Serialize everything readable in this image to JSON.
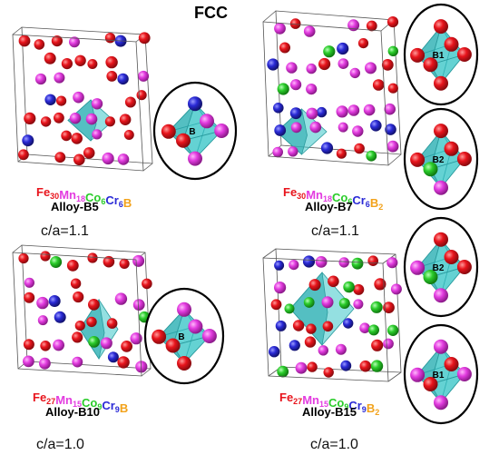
{
  "title": "FCC",
  "colors": {
    "Fe": "#e8141c",
    "Mn": "#e33ce0",
    "Co": "#2bcc2b",
    "Cr": "#2a2ad6",
    "B": "#f2a21a",
    "polyhedron": "#3cc6c9"
  },
  "panels": [
    {
      "formula": [
        {
          "el": "Fe",
          "sub": "30"
        },
        {
          "el": "Mn",
          "sub": "18"
        },
        {
          "el": "Co",
          "sub": "6"
        },
        {
          "el": "Cr",
          "sub": "6"
        },
        {
          "el": "B",
          "sub": ""
        }
      ],
      "alloy": "Alloy-B5",
      "ca": "c/a=1.1"
    },
    {
      "formula": [
        {
          "el": "Fe",
          "sub": "30"
        },
        {
          "el": "Mn",
          "sub": "18"
        },
        {
          "el": "Co",
          "sub": "6"
        },
        {
          "el": "Cr",
          "sub": "6"
        },
        {
          "el": "B",
          "sub": "2"
        }
      ],
      "alloy": "Alloy-B7",
      "ca": "c/a=1.1"
    },
    {
      "formula": [
        {
          "el": "Fe",
          "sub": "27"
        },
        {
          "el": "Mn",
          "sub": "15"
        },
        {
          "el": "Co",
          "sub": "9"
        },
        {
          "el": "Cr",
          "sub": "9"
        },
        {
          "el": "B",
          "sub": ""
        }
      ],
      "alloy": "Alloy-B10",
      "ca": "c/a=1.0"
    },
    {
      "formula": [
        {
          "el": "Fe",
          "sub": "27"
        },
        {
          "el": "Mn",
          "sub": "15"
        },
        {
          "el": "Co",
          "sub": "9"
        },
        {
          "el": "Cr",
          "sub": "9"
        },
        {
          "el": "B",
          "sub": "2"
        }
      ],
      "alloy": "Alloy-B15",
      "ca": "c/a=1.0"
    }
  ],
  "insets": [
    {
      "label": "B",
      "neighbors": [
        "Cr",
        "Fe",
        "Fe",
        "Mn",
        "Mn",
        "Mn"
      ]
    },
    {
      "label": "B1",
      "neighbors": [
        "Fe",
        "Fe",
        "Fe",
        "Fe",
        "Fe",
        "Fe"
      ]
    },
    {
      "label": "B2",
      "neighbors": [
        "Fe",
        "Fe",
        "Co",
        "Fe",
        "Mn",
        "Fe"
      ]
    },
    {
      "label": "B",
      "neighbors": [
        "Mn",
        "Fe",
        "Fe",
        "Mn",
        "Fe",
        "Mn"
      ]
    },
    {
      "label": "B2",
      "neighbors": [
        "Fe",
        "Mn",
        "Co",
        "Fe",
        "Mn",
        "Fe"
      ]
    },
    {
      "label": "B1",
      "neighbors": [
        "Mn",
        "Mn",
        "Fe",
        "Mn",
        "Mn",
        "Fe"
      ]
    }
  ]
}
